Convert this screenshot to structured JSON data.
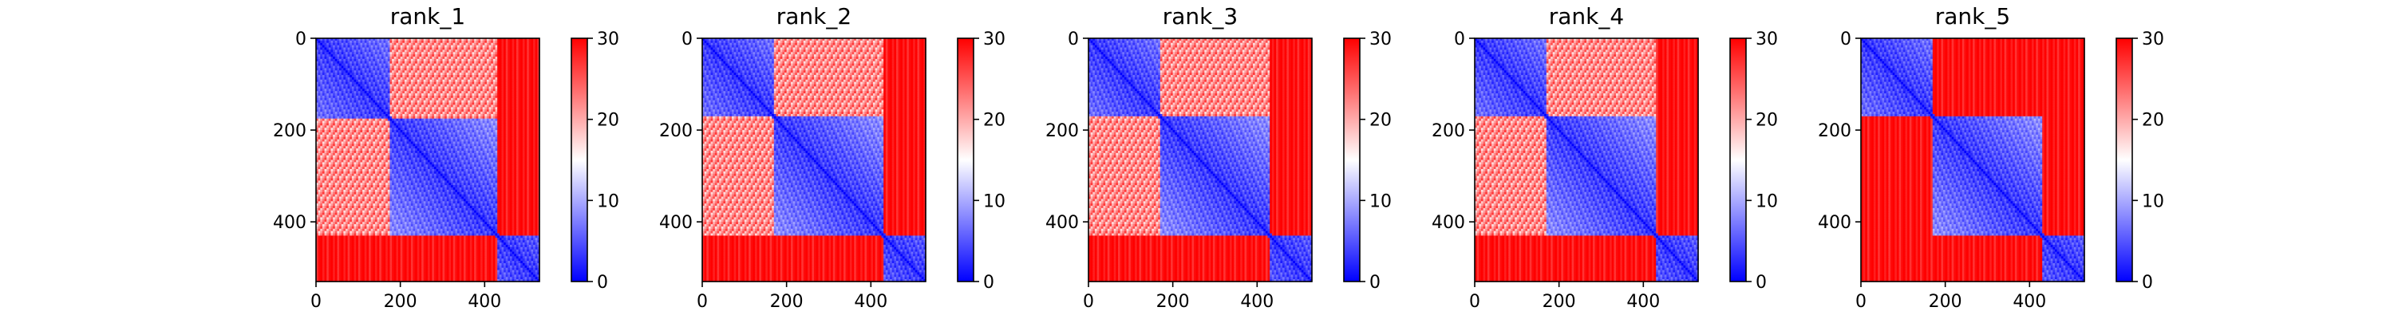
{
  "chart_data": {
    "type": "heatmap",
    "colormap": "bwr",
    "colormap_colors": [
      "#0000ff",
      "#ffffff",
      "#ff0000"
    ],
    "color_range": [
      0,
      30
    ],
    "colorbar_ticks": [
      "0",
      "10",
      "20",
      "30"
    ],
    "axis_range": [
      0,
      530
    ],
    "x_ticks": [
      "0",
      "200",
      "400"
    ],
    "y_ticks": [
      "0",
      "200",
      "400"
    ],
    "panels": [
      {
        "title": "rank_1",
        "domains": [
          [
            0,
            175
          ],
          [
            175,
            430
          ],
          [
            430,
            530
          ]
        ],
        "low_pairs": [
          [
            0,
            0
          ],
          [
            1,
            1
          ],
          [
            2,
            2
          ]
        ],
        "mid_pairs": [
          [
            0,
            1
          ]
        ]
      },
      {
        "title": "rank_2",
        "domains": [
          [
            0,
            170
          ],
          [
            170,
            430
          ],
          [
            430,
            530
          ]
        ],
        "low_pairs": [
          [
            0,
            0
          ],
          [
            1,
            1
          ],
          [
            2,
            2
          ]
        ],
        "mid_pairs": [
          [
            0,
            1
          ]
        ]
      },
      {
        "title": "rank_3",
        "domains": [
          [
            0,
            170
          ],
          [
            170,
            430
          ],
          [
            430,
            530
          ]
        ],
        "low_pairs": [
          [
            0,
            0
          ],
          [
            1,
            1
          ],
          [
            2,
            2
          ]
        ],
        "mid_pairs": [
          [
            0,
            1
          ]
        ]
      },
      {
        "title": "rank_4",
        "domains": [
          [
            0,
            170
          ],
          [
            170,
            430
          ],
          [
            430,
            530
          ]
        ],
        "low_pairs": [
          [
            0,
            0
          ],
          [
            1,
            1
          ],
          [
            2,
            2
          ]
        ],
        "mid_pairs": [
          [
            0,
            1
          ]
        ]
      },
      {
        "title": "rank_5",
        "domains": [
          [
            0,
            170
          ],
          [
            170,
            430
          ],
          [
            430,
            530
          ]
        ],
        "low_pairs": [
          [
            0,
            0
          ],
          [
            1,
            1
          ],
          [
            2,
            2
          ]
        ],
        "mid_pairs": []
      }
    ]
  }
}
